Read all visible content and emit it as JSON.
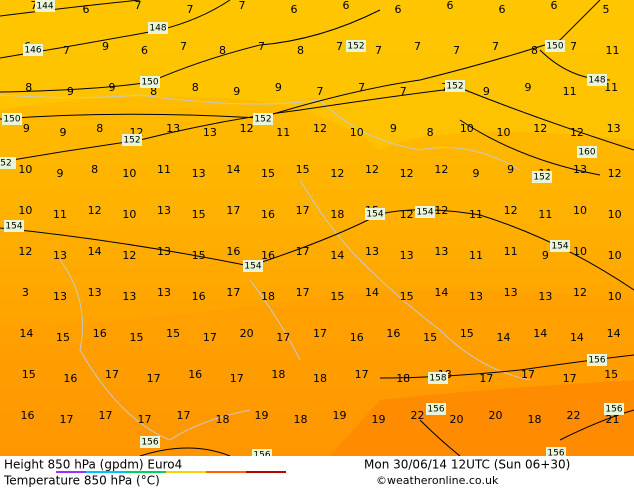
{
  "map": {
    "temperature_rows": [
      [
        7,
        6,
        7,
        7,
        7,
        6,
        6,
        6,
        6,
        6,
        6,
        5
      ],
      [
        6,
        7,
        9,
        6,
        7,
        8,
        7,
        8,
        7,
        7,
        7,
        7,
        7,
        8,
        7,
        11
      ],
      [
        8,
        9,
        9,
        8,
        8,
        9,
        9,
        7,
        7,
        7,
        7,
        9,
        9,
        11,
        11
      ],
      [
        9,
        9,
        8,
        12,
        13,
        13,
        12,
        11,
        12,
        10,
        9,
        8,
        10,
        10,
        12,
        12,
        13
      ],
      [
        10,
        9,
        8,
        10,
        11,
        13,
        14,
        15,
        15,
        12,
        12,
        12,
        12,
        9,
        9,
        11,
        13,
        12
      ],
      [
        10,
        11,
        12,
        10,
        13,
        15,
        17,
        16,
        17,
        18,
        15,
        12,
        12,
        11,
        12,
        11,
        10,
        10
      ],
      [
        12,
        13,
        14,
        12,
        13,
        15,
        16,
        16,
        17,
        14,
        13,
        13,
        13,
        11,
        11,
        9,
        10,
        10
      ],
      [
        3,
        13,
        13,
        13,
        13,
        16,
        17,
        18,
        17,
        15,
        14,
        15,
        14,
        13,
        13,
        13,
        12,
        10
      ],
      [
        14,
        15,
        16,
        15,
        15,
        17,
        20,
        17,
        17,
        16,
        16,
        15,
        15,
        14,
        14,
        14,
        14
      ],
      [
        15,
        16,
        17,
        17,
        16,
        17,
        18,
        18,
        17,
        18,
        18,
        17,
        17,
        17,
        15
      ],
      [
        16,
        17,
        17,
        17,
        17,
        18,
        19,
        18,
        19,
        19,
        22,
        20,
        20,
        18,
        22,
        21
      ]
    ],
    "contour_labels": [
      "144",
      "146",
      "148",
      "150",
      "152",
      "150",
      "148",
      "150",
      "152",
      "152",
      "152",
      "160",
      "152",
      "52",
      "154",
      "154",
      "154",
      "154",
      "154",
      "156",
      "158",
      "156",
      "156",
      "156",
      "156",
      "156"
    ]
  },
  "footer": {
    "left_top": "Height 850 hPa (gpdm) Euro4",
    "left_bottom": "Temperature 850 hPa (°C)",
    "right_top": "Mon 30/06/14 12UTC (Sun 06+30)",
    "right_bottom": "©weatheronline.co.uk"
  }
}
